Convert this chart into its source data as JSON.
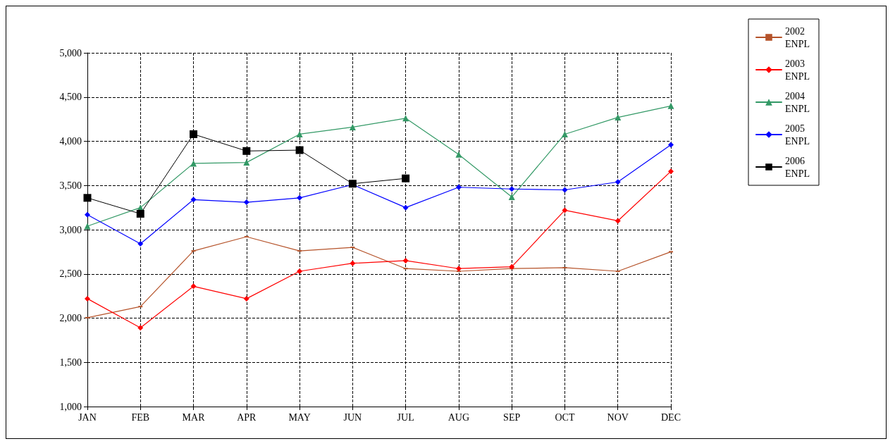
{
  "chart_data": {
    "type": "line",
    "categories": [
      "JAN",
      "FEB",
      "MAR",
      "APR",
      "MAY",
      "JUN",
      "JUL",
      "AUG",
      "SEP",
      "OCT",
      "NOV",
      "DEC"
    ],
    "series": [
      {
        "name": "2002 ENPL",
        "color": "#b5532a",
        "marker": "square",
        "values": [
          2005,
          2130,
          2760,
          2920,
          2760,
          2800,
          2560,
          2530,
          2560,
          2570,
          2530,
          2750
        ]
      },
      {
        "name": "2003 ENPL",
        "color": "#ff0000",
        "marker": "diamond",
        "values": [
          2220,
          1890,
          2360,
          2220,
          2530,
          2620,
          2650,
          2560,
          2580,
          3220,
          3100,
          3660
        ]
      },
      {
        "name": "2004 ENPL",
        "color": "#339966",
        "marker": "triangle",
        "values": [
          3040,
          3250,
          3750,
          3760,
          4080,
          4160,
          4260,
          3850,
          3370,
          4080,
          4270,
          4400
        ]
      },
      {
        "name": "2005 ENPL",
        "color": "#0000ff",
        "marker": "diamond",
        "values": [
          3170,
          2840,
          3340,
          3310,
          3360,
          3510,
          3250,
          3480,
          3460,
          3450,
          3540,
          3960
        ]
      },
      {
        "name": "2006 ENPL",
        "color": "#000000",
        "marker": "square",
        "values": [
          3360,
          3180,
          4080,
          3890,
          3900,
          3520,
          3580,
          null,
          null,
          null,
          null,
          null
        ]
      }
    ],
    "ylim": [
      1000,
      5000
    ],
    "yticks": [
      {
        "value": 1000,
        "label": "1,000"
      },
      {
        "value": 1500,
        "label": "1,500"
      },
      {
        "value": 2000,
        "label": "2,000"
      },
      {
        "value": 2500,
        "label": "2,500"
      },
      {
        "value": 3000,
        "label": "3,000"
      },
      {
        "value": 3500,
        "label": "3,500"
      },
      {
        "value": 4000,
        "label": "4,000"
      },
      {
        "value": 4500,
        "label": "4,500"
      },
      {
        "value": 5000,
        "label": "5,000"
      }
    ],
    "grid": true,
    "legend": "top right",
    "line_style": "solid"
  }
}
